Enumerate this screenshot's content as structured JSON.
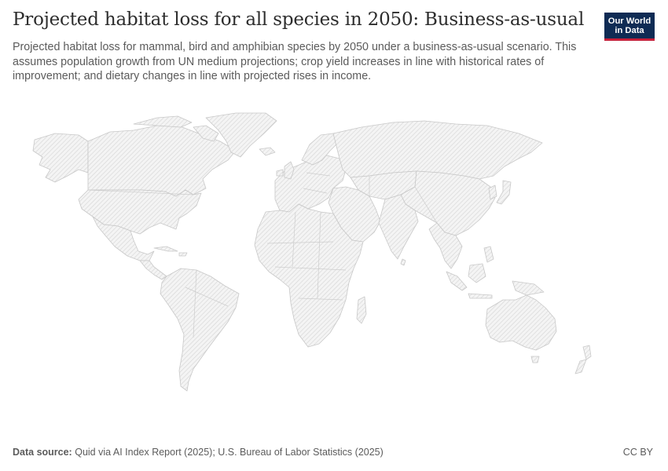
{
  "header": {
    "title": "Projected habitat loss for all species in 2050: Business-as-usual",
    "subtitle": "Projected habitat loss for mammal, bird and amphibian species by 2050 under a business-as-usual scenario. This assumes population growth from UN medium projections; crop yield increases in line with historical rates of improvement; and dietary changes in line with projected rises in income."
  },
  "logo": {
    "line1": "Our World",
    "line2": "in Data",
    "background_color": "#0f2b54",
    "accent_color": "#c8203a"
  },
  "map": {
    "fill_pattern": "diagonal-hatch-no-data",
    "land_color": "#f2f2f2",
    "hatch_color": "#dcdcdc",
    "border_color": "#c9c9c9"
  },
  "footer": {
    "source_label": "Data source:",
    "source_text": "Quid via AI Index Report (2025); U.S. Bureau of Labor Statistics (2025)",
    "license": "CC BY"
  }
}
